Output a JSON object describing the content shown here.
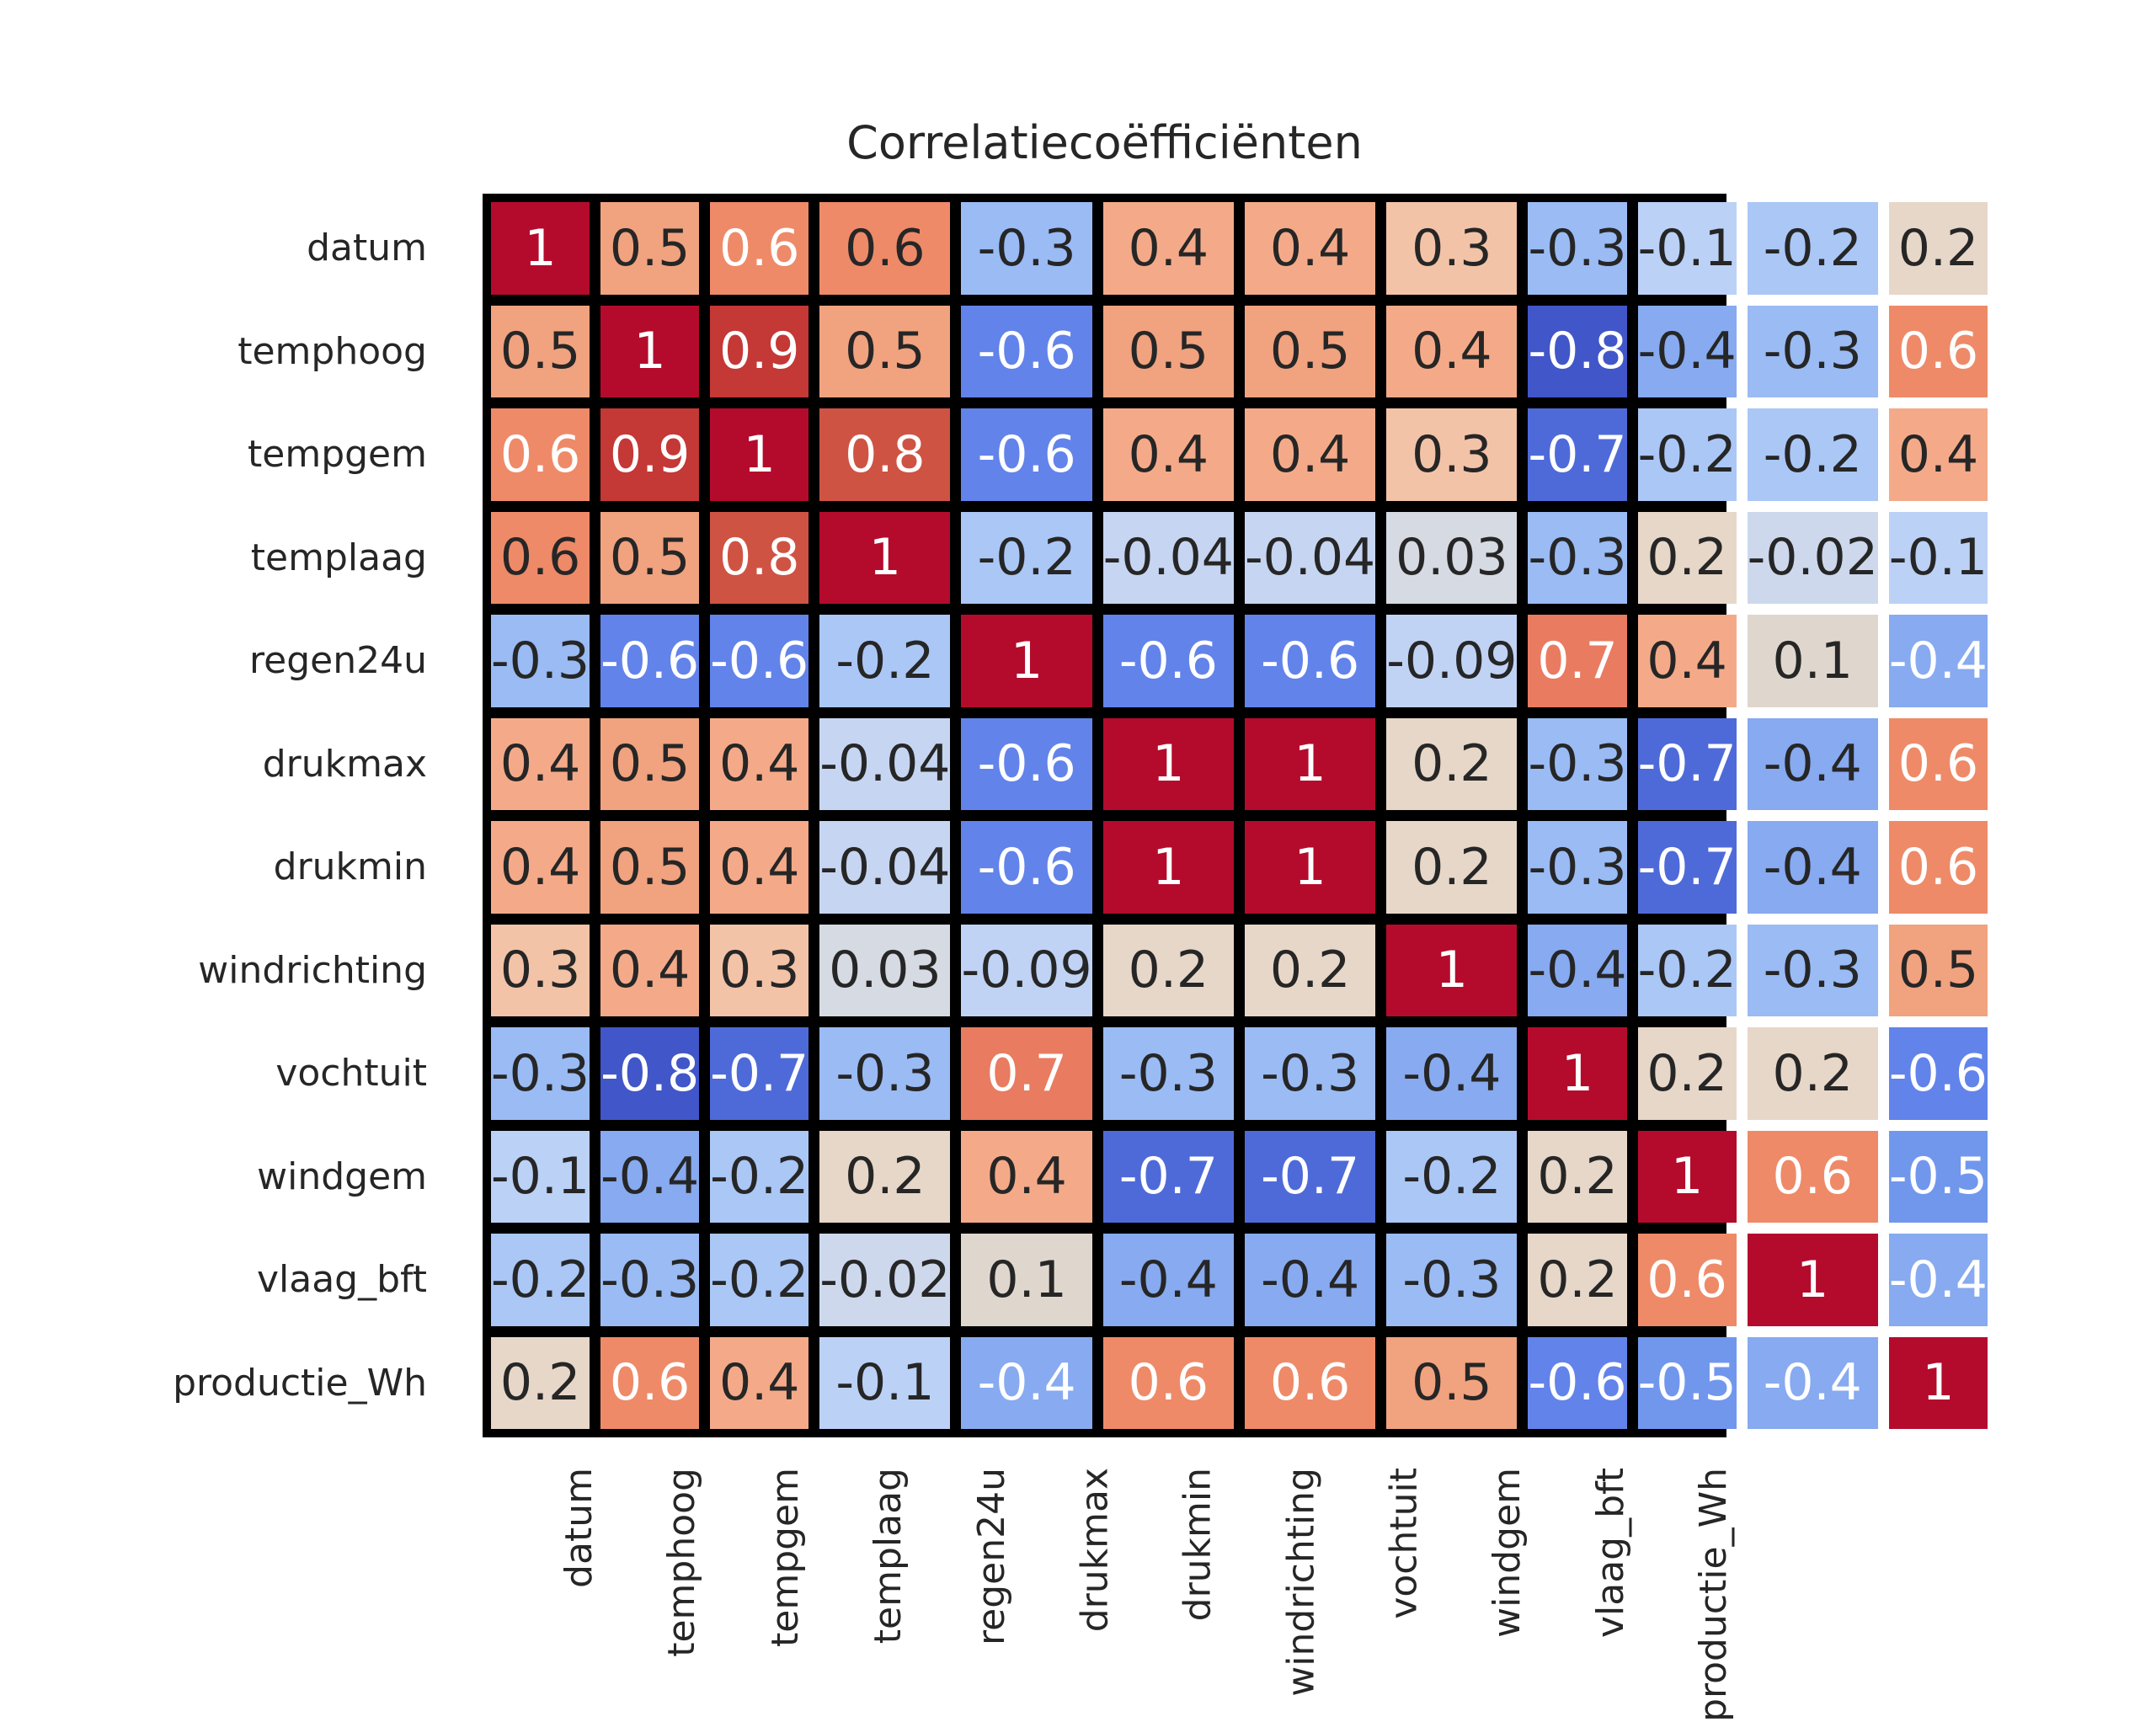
{
  "title": "Correlatiecoëfficiënten",
  "chart_data": {
    "type": "heatmap",
    "colormap": "coolwarm",
    "background": "#ffffff",
    "grid_color": "#000000",
    "text_color_dark": "#262626",
    "text_color_light": "#ffffff",
    "label_color": "#262626",
    "labels": [
      "datum",
      "temphoog",
      "tempgem",
      "templaag",
      "regen24u",
      "drukmax",
      "drukmin",
      "windrichting",
      "vochtuit",
      "windgem",
      "vlaag_bft",
      "productie_Wh"
    ],
    "values": [
      [
        "1",
        "0.5",
        "0.6",
        "0.6",
        "-0.3",
        "0.4",
        "0.4",
        "0.3",
        "-0.3",
        "-0.1",
        "-0.2",
        "0.2"
      ],
      [
        "0.5",
        "1",
        "0.9",
        "0.5",
        "-0.6",
        "0.5",
        "0.5",
        "0.4",
        "-0.8",
        "-0.4",
        "-0.3",
        "0.6"
      ],
      [
        "0.6",
        "0.9",
        "1",
        "0.8",
        "-0.6",
        "0.4",
        "0.4",
        "0.3",
        "-0.7",
        "-0.2",
        "-0.2",
        "0.4"
      ],
      [
        "0.6",
        "0.5",
        "0.8",
        "1",
        "-0.2",
        "-0.04",
        "-0.04",
        "0.03",
        "-0.3",
        "0.2",
        "-0.02",
        "-0.1"
      ],
      [
        "-0.3",
        "-0.6",
        "-0.6",
        "-0.2",
        "1",
        "-0.6",
        "-0.6",
        "-0.09",
        "0.7",
        "0.4",
        "0.1",
        "-0.4"
      ],
      [
        "0.4",
        "0.5",
        "0.4",
        "-0.04",
        "-0.6",
        "1",
        "1",
        "0.2",
        "-0.3",
        "-0.7",
        "-0.4",
        "0.6"
      ],
      [
        "0.4",
        "0.5",
        "0.4",
        "-0.04",
        "-0.6",
        "1",
        "1",
        "0.2",
        "-0.3",
        "-0.7",
        "-0.4",
        "0.6"
      ],
      [
        "0.3",
        "0.4",
        "0.3",
        "0.03",
        "-0.09",
        "0.2",
        "0.2",
        "1",
        "-0.4",
        "-0.2",
        "-0.3",
        "0.5"
      ],
      [
        "-0.3",
        "-0.8",
        "-0.7",
        "-0.3",
        "0.7",
        "-0.3",
        "-0.3",
        "-0.4",
        "1",
        "0.2",
        "0.2",
        "-0.6"
      ],
      [
        "-0.1",
        "-0.4",
        "-0.2",
        "0.2",
        "0.4",
        "-0.7",
        "-0.7",
        "-0.2",
        "0.2",
        "1",
        "0.6",
        "-0.5"
      ],
      [
        "-0.2",
        "-0.3",
        "-0.2",
        "-0.02",
        "0.1",
        "-0.4",
        "-0.4",
        "-0.3",
        "0.2",
        "0.6",
        "1",
        "-0.4"
      ],
      [
        "0.2",
        "0.6",
        "0.4",
        "-0.1",
        "-0.4",
        "0.6",
        "0.6",
        "0.5",
        "-0.6",
        "-0.5",
        "-0.4",
        "1"
      ]
    ],
    "white_text": [
      [
        1,
        0,
        1,
        0,
        0,
        0,
        0,
        0,
        0,
        0,
        0,
        0
      ],
      [
        0,
        1,
        1,
        0,
        1,
        0,
        0,
        0,
        1,
        0,
        0,
        1
      ],
      [
        1,
        1,
        1,
        1,
        1,
        0,
        0,
        0,
        1,
        0,
        0,
        0
      ],
      [
        0,
        0,
        1,
        1,
        0,
        0,
        0,
        0,
        0,
        0,
        0,
        0
      ],
      [
        0,
        1,
        1,
        0,
        1,
        1,
        1,
        0,
        1,
        0,
        0,
        1
      ],
      [
        0,
        0,
        0,
        0,
        1,
        1,
        1,
        0,
        0,
        1,
        0,
        1
      ],
      [
        0,
        0,
        0,
        0,
        1,
        1,
        1,
        0,
        0,
        1,
        0,
        1
      ],
      [
        0,
        0,
        0,
        0,
        0,
        0,
        0,
        1,
        0,
        0,
        0,
        0
      ],
      [
        0,
        1,
        1,
        0,
        1,
        0,
        0,
        0,
        1,
        0,
        0,
        1
      ],
      [
        0,
        0,
        0,
        0,
        0,
        1,
        1,
        0,
        0,
        1,
        1,
        1
      ],
      [
        0,
        0,
        0,
        0,
        0,
        0,
        0,
        0,
        0,
        1,
        1,
        1
      ],
      [
        0,
        1,
        0,
        0,
        1,
        1,
        1,
        0,
        1,
        1,
        1,
        1
      ]
    ],
    "palette": {
      "1": "#b40b2c",
      "0.9": "#c43836",
      "0.8": "#cf5343",
      "0.7": "#e97b60",
      "0.6": "#ee8a68",
      "0.5": "#f1a27f",
      "0.4": "#f4aa89",
      "0.3": "#f3c3a8",
      "0.2": "#e7d7c9",
      "0.1": "#dfd7ce",
      "0.03": "#d6dae2",
      "-0.02": "#cdd8ec",
      "-0.04": "#c6d5f1",
      "-0.09": "#c0d3f5",
      "-0.1": "#bbd1f6",
      "-0.2": "#aac7f6",
      "-0.3": "#9abbf4",
      "-0.4": "#87aaf0",
      "-0.5": "#7197ed",
      "-0.6": "#6283ea",
      "-0.7": "#4e6ad9",
      "-0.8": "#4156c8"
    }
  }
}
